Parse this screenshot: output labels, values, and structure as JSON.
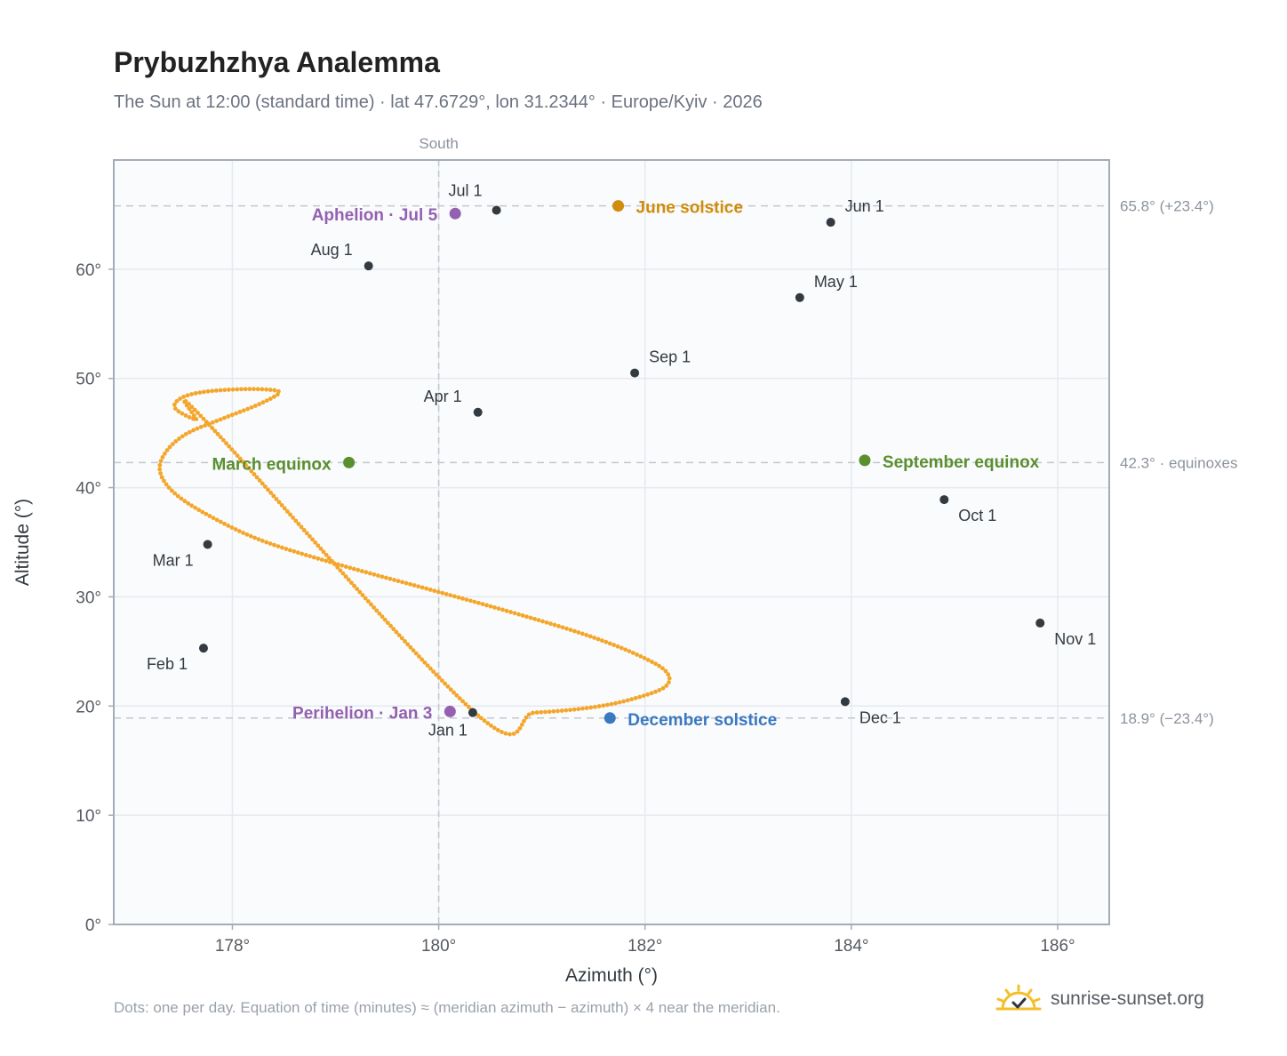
{
  "title": "Prybuzhzhya Analemma",
  "subtitle": "The Sun at 12:00 (standard time) · lat 47.6729°, lon 31.2344° · Europe/Kyiv · 2026",
  "footnote": "Dots: one per day. Equation of time (minutes) ≈ (meridian azimuth − azimuth) × 4 near the meridian.",
  "brand": "sunrise-sunset.org",
  "colors": {
    "path": "#f4a62a",
    "month_marker": "#333a40",
    "june": "#d08c0a",
    "equinox": "#5a8f2e",
    "december": "#3a78c0",
    "aphelion": "#9460b0",
    "gridline": "#e6e9ee",
    "reference_line": "#c3c8cf"
  },
  "chart_data": {
    "type": "scatter",
    "xlabel": "Azimuth (°)",
    "ylabel": "Altitude (°)",
    "xlim": [
      176.85,
      186.5
    ],
    "ylim": [
      0,
      70
    ],
    "x_ticks": [
      178,
      180,
      182,
      184,
      186
    ],
    "x_tick_labels": [
      "178°",
      "180°",
      "182°",
      "184°",
      "186°"
    ],
    "y_ticks": [
      0,
      10,
      20,
      30,
      40,
      50,
      60
    ],
    "y_tick_labels": [
      "0°",
      "10°",
      "20°",
      "30°",
      "40°",
      "50°",
      "60°"
    ],
    "grid": true,
    "meridian": {
      "x": 180,
      "label": "South"
    },
    "reference_lines": [
      {
        "y": 65.8,
        "label": "65.8° (+23.4°)"
      },
      {
        "y": 42.3,
        "label": "42.3° · equinoxes"
      },
      {
        "y": 18.9,
        "label": "18.9° (−23.4°)"
      }
    ],
    "path_points": [
      [
        180.35,
        19.4
      ],
      [
        180.93,
        19.4
      ],
      [
        181.5,
        19.9
      ],
      [
        181.9,
        20.7
      ],
      [
        182.2,
        21.8
      ],
      [
        182.2,
        23.2
      ],
      [
        181.9,
        24.8
      ],
      [
        181.4,
        26.6
      ],
      [
        180.7,
        28.6
      ],
      [
        179.9,
        30.7
      ],
      [
        179.05,
        32.9
      ],
      [
        178.3,
        35.1
      ],
      [
        177.8,
        37.3
      ],
      [
        177.45,
        39.4
      ],
      [
        177.3,
        41.4
      ],
      [
        177.35,
        43.2
      ],
      [
        177.55,
        44.9
      ],
      [
        177.9,
        46.3
      ],
      [
        178.2,
        47.4
      ],
      [
        178.4,
        48.3
      ],
      [
        178.45,
        48.8
      ],
      [
        178.3,
        49.0
      ],
      [
        178.05,
        49.0
      ],
      [
        177.75,
        48.8
      ],
      [
        177.55,
        48.4
      ],
      [
        177.45,
        47.8
      ],
      [
        177.45,
        47.2
      ],
      [
        177.55,
        46.6
      ],
      [
        177.65,
        46.2
      ],
      [
        177.75,
        46.0
      ]
    ],
    "month_markers": [
      {
        "label": "Jan 1",
        "x": 180.33,
        "y": 19.4
      },
      {
        "label": "Feb 1",
        "x": 177.72,
        "y": 25.3
      },
      {
        "label": "Mar 1",
        "x": 177.76,
        "y": 34.8
      },
      {
        "label": "Apr 1",
        "x": 180.38,
        "y": 46.9
      },
      {
        "label": "May 1",
        "x": 183.5,
        "y": 57.4
      },
      {
        "label": "Jun 1",
        "x": 183.8,
        "y": 64.3
      },
      {
        "label": "Jul 1",
        "x": 180.56,
        "y": 65.4
      },
      {
        "label": "Aug 1",
        "x": 179.32,
        "y": 60.3
      },
      {
        "label": "Sep 1",
        "x": 181.9,
        "y": 50.5
      },
      {
        "label": "Oct 1",
        "x": 184.9,
        "y": 38.9
      },
      {
        "label": "Nov 1",
        "x": 185.83,
        "y": 27.6
      },
      {
        "label": "Dec 1",
        "x": 183.94,
        "y": 20.4
      }
    ],
    "events": [
      {
        "label": "June solstice",
        "x": 181.74,
        "y": 65.8,
        "color_key": "june"
      },
      {
        "label": "March equinox",
        "x": 179.13,
        "y": 42.3,
        "color_key": "equinox"
      },
      {
        "label": "September equinox",
        "x": 184.13,
        "y": 42.5,
        "color_key": "equinox"
      },
      {
        "label": "December solstice",
        "x": 181.66,
        "y": 18.9,
        "color_key": "december"
      },
      {
        "label": "Aphelion · Jul 5",
        "x": 180.16,
        "y": 65.1,
        "color_key": "aphelion"
      },
      {
        "label": "Perihelion · Jan 3",
        "x": 180.11,
        "y": 19.5,
        "color_key": "aphelion"
      }
    ]
  }
}
